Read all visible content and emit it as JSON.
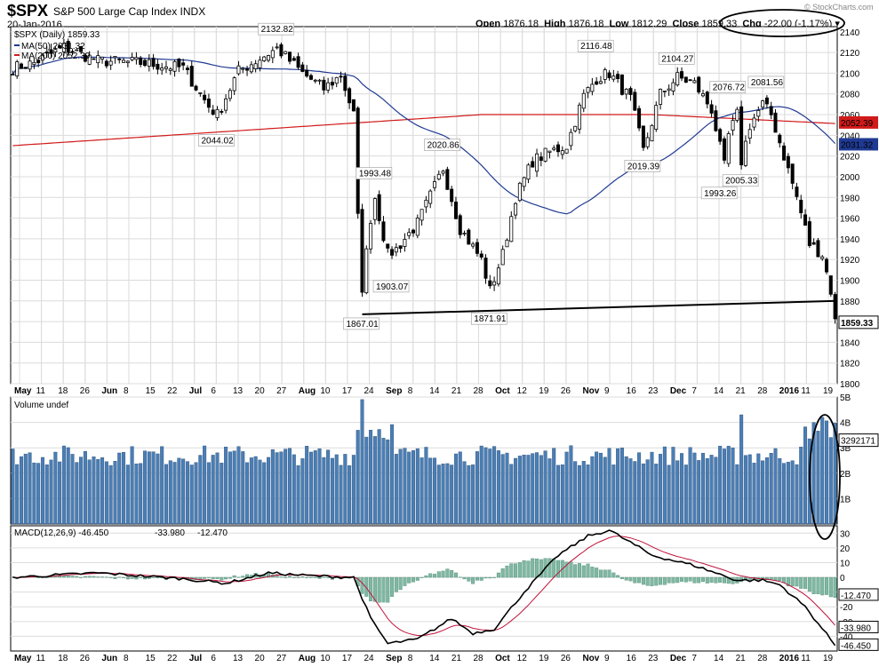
{
  "header": {
    "ticker": "$SPX",
    "subtitle": "S&P 500 Large Cap Index  INDX",
    "date": "20-Jan-2016",
    "open_label": "Open",
    "open": "1876.18",
    "high_label": "High",
    "high": "1876.18",
    "low_label": "Low",
    "low": "1812.29",
    "close_label": "Close",
    "close": "1859.33",
    "chg_label": "Chg",
    "chg": "-22.00 (-1.17%)",
    "copyright": "© StockCharts.com"
  },
  "colors": {
    "candle_up": "#000000",
    "candle_down": "#000000",
    "ma50": "#1f3a93",
    "ma200": "#d11a1a",
    "volume": "#4a7eb5",
    "macd_line": "#000000",
    "macd_signal": "#c0143c",
    "macd_hist": "#7fb8a3",
    "grid": "#dcdcdc",
    "annotation": "#000000"
  },
  "chart_data": [
    {
      "type": "candlestick",
      "panel": "price",
      "title": "$SPX (Daily) 1859.33",
      "legend": [
        {
          "name": "MA(50)",
          "value": "2031.32",
          "color": "#1f3a93"
        },
        {
          "name": "MA(200)",
          "value": "2052.39",
          "color": "#d11a1a"
        }
      ],
      "ylim": [
        1800,
        2145
      ],
      "y_ticks": [
        1800,
        1820,
        1840,
        1860,
        1880,
        1900,
        1920,
        1940,
        1960,
        1980,
        2000,
        2020,
        2040,
        2060,
        2080,
        2100,
        2120,
        2140
      ],
      "x_labels": [
        "May",
        "11",
        "18",
        "26",
        "Jun",
        "8",
        "15",
        "22",
        "Jul",
        "6",
        "13",
        "20",
        "27",
        "Aug",
        "10",
        "17",
        "24",
        "Sep",
        "8",
        "14",
        "21",
        "28",
        "Oct",
        "12",
        "19",
        "26",
        "Nov",
        "9",
        "16",
        "23",
        "Dec",
        "7",
        "14",
        "21",
        "28",
        "2016",
        "11",
        "19"
      ],
      "annotations": [
        {
          "label": "2132.82",
          "date_index": 62
        },
        {
          "label": "2044.02",
          "date_index": 48
        },
        {
          "label": "1993.48",
          "date_index": 85
        },
        {
          "label": "1867.01",
          "date_index": 82
        },
        {
          "label": "1903.07",
          "date_index": 89
        },
        {
          "label": "2020.86",
          "date_index": 101
        },
        {
          "label": "1871.91",
          "date_index": 112
        },
        {
          "label": "2116.48",
          "date_index": 137
        },
        {
          "label": "2019.39",
          "date_index": 148
        },
        {
          "label": "2104.27",
          "date_index": 156
        },
        {
          "label": "2076.72",
          "date_index": 168
        },
        {
          "label": "1993.26",
          "date_index": 166
        },
        {
          "label": "2081.56",
          "date_index": 177
        },
        {
          "label": "2005.33",
          "date_index": 171
        }
      ],
      "last_value_label": "1859.33",
      "ma200_label": "2052.39",
      "ma50_label": "2031.32"
    },
    {
      "type": "bar",
      "panel": "volume",
      "title": "Volume undef",
      "ylim": [
        0,
        5
      ],
      "y_ticks": [
        "1B",
        "2B",
        "3B",
        "4B",
        "5B"
      ],
      "last_value_label": "3292171"
    },
    {
      "type": "line",
      "panel": "macd",
      "title": "MACD(12,26,9)",
      "macd_value": "-46.450",
      "signal_value": "-33.980",
      "hist_value": "-12.470",
      "ylim": [
        -50,
        35
      ],
      "y_ticks": [
        -40,
        -30,
        -20,
        -10,
        0,
        10,
        20,
        30
      ],
      "x_labels": [
        "May",
        "11",
        "18",
        "26",
        "Jun",
        "8",
        "15",
        "22",
        "Jul",
        "6",
        "13",
        "20",
        "27",
        "Aug",
        "10",
        "17",
        "24",
        "Sep",
        "8",
        "14",
        "21",
        "28",
        "Oct",
        "12",
        "19",
        "26",
        "Nov",
        "9",
        "16",
        "23",
        "Dec",
        "7",
        "14",
        "21",
        "28",
        "2016",
        "11",
        "19"
      ]
    }
  ]
}
